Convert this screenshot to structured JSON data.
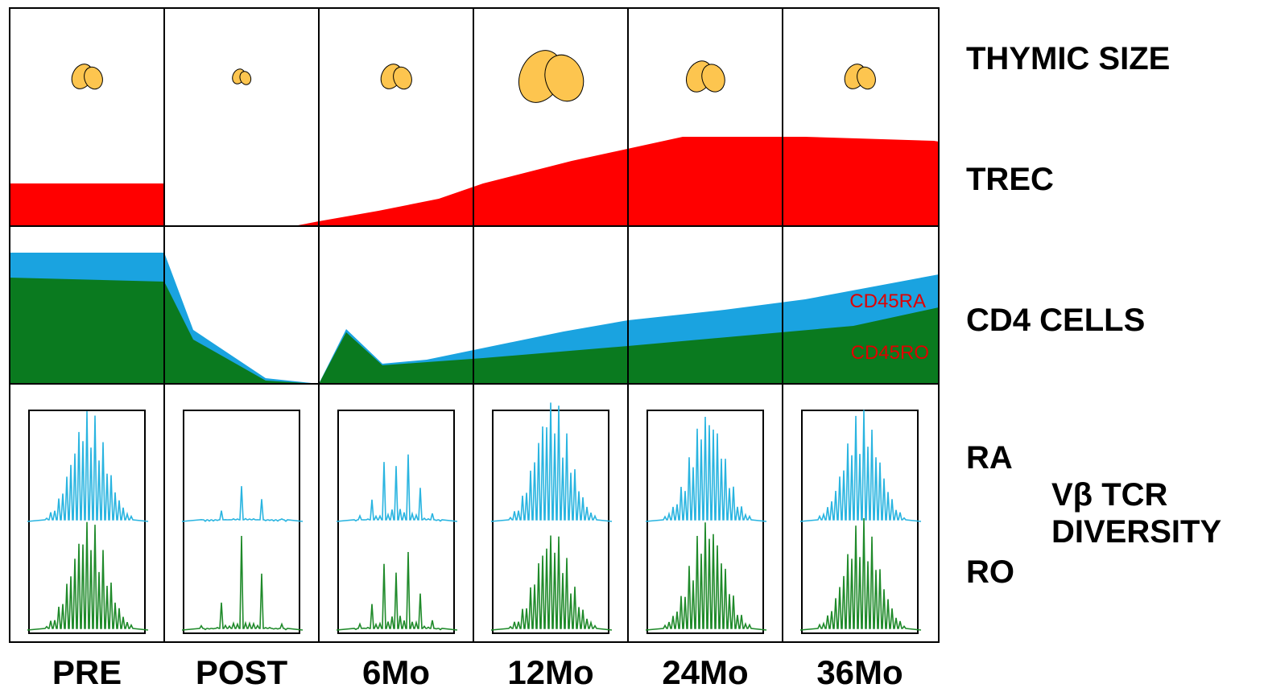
{
  "columns": [
    "PRE",
    "POST",
    "6Mo",
    "12Mo",
    "24Mo",
    "36Mo"
  ],
  "row_labels": {
    "thymic_size": "THYMIC SIZE",
    "trec": "TREC",
    "cd4_cells": "CD4 CELLS",
    "ra": "RA",
    "ro": "RO",
    "diversity": [
      "Vβ TCR",
      "DIVERSITY"
    ]
  },
  "cd4_subsets": {
    "ra": "CD45RA",
    "ro": "CD45RO"
  }
}
